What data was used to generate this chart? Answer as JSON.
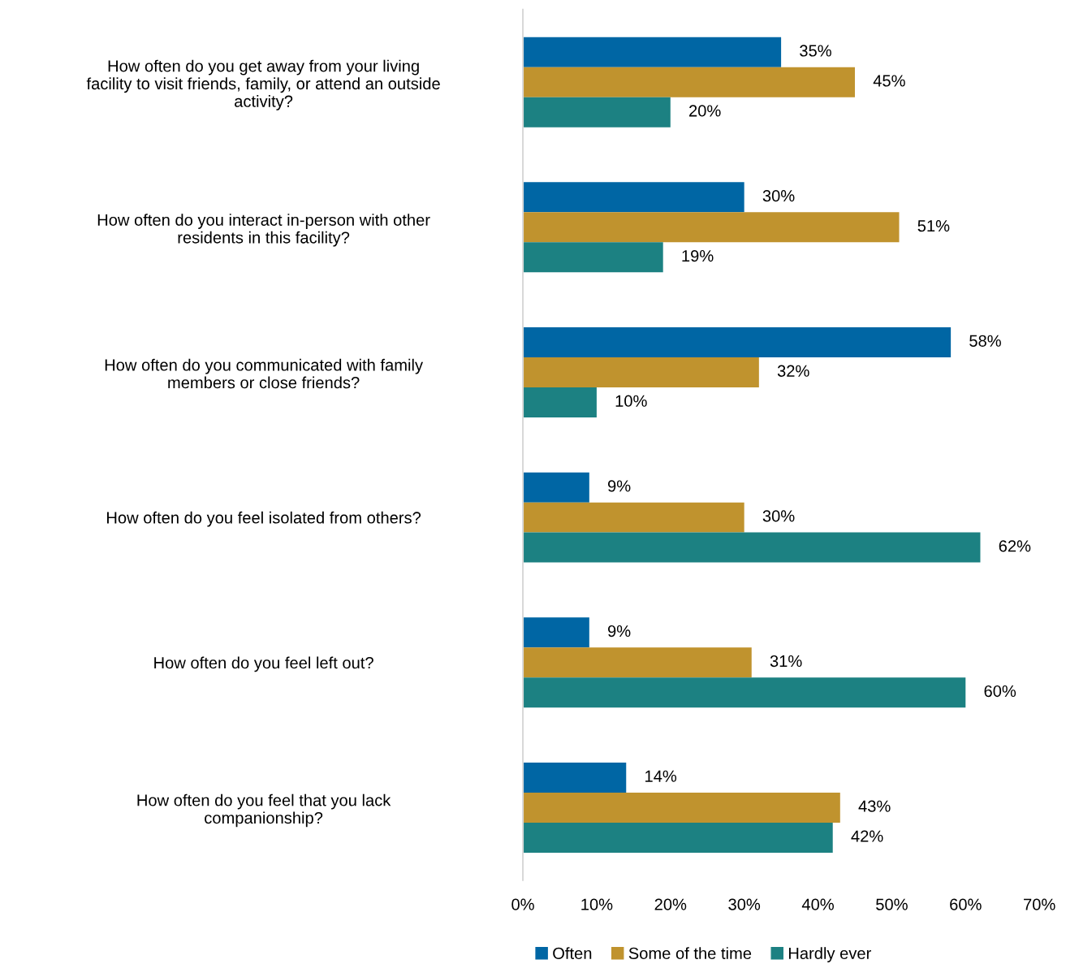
{
  "chart_data": {
    "type": "bar",
    "orientation": "horizontal",
    "categories": [
      "How often do you get away from your living\nfacility to visit friends, family, or attend an outside\nactivity?",
      "How often do you interact in-person with other\nresidents in this facility?",
      "How often do you communicated with family\nmembers or close friends?",
      "How often do you feel isolated from others?",
      "How often do you feel left out?",
      "How often do you feel that you lack\ncompanionship?"
    ],
    "series": [
      {
        "name": "Often",
        "color": "#0066a4",
        "values": [
          35,
          30,
          58,
          9,
          9,
          14
        ],
        "value_labels": [
          "35%",
          "30%",
          "58%",
          "9%",
          "9%",
          "14%"
        ]
      },
      {
        "name": "Some of the time",
        "color": "#c0932e",
        "values": [
          45,
          51,
          32,
          30,
          31,
          43
        ],
        "value_labels": [
          "45%",
          "51%",
          "32%",
          "30%",
          "31%",
          "43%"
        ]
      },
      {
        "name": "Hardly ever",
        "color": "#1c8182",
        "values": [
          20,
          19,
          10,
          62,
          60,
          42
        ],
        "value_labels": [
          "20%",
          "19%",
          "10%",
          "62%",
          "60%",
          "42%"
        ]
      }
    ],
    "xlim": [
      0,
      70
    ],
    "xticks": [
      {
        "value": 0,
        "label": "0%"
      },
      {
        "value": 10,
        "label": "10%"
      },
      {
        "value": 20,
        "label": "20%"
      },
      {
        "value": 30,
        "label": "30%"
      },
      {
        "value": 40,
        "label": "40%"
      },
      {
        "value": 50,
        "label": "50%"
      },
      {
        "value": 60,
        "label": "60%"
      },
      {
        "value": 70,
        "label": "70%"
      }
    ],
    "grid": false,
    "legend": "bottom"
  }
}
